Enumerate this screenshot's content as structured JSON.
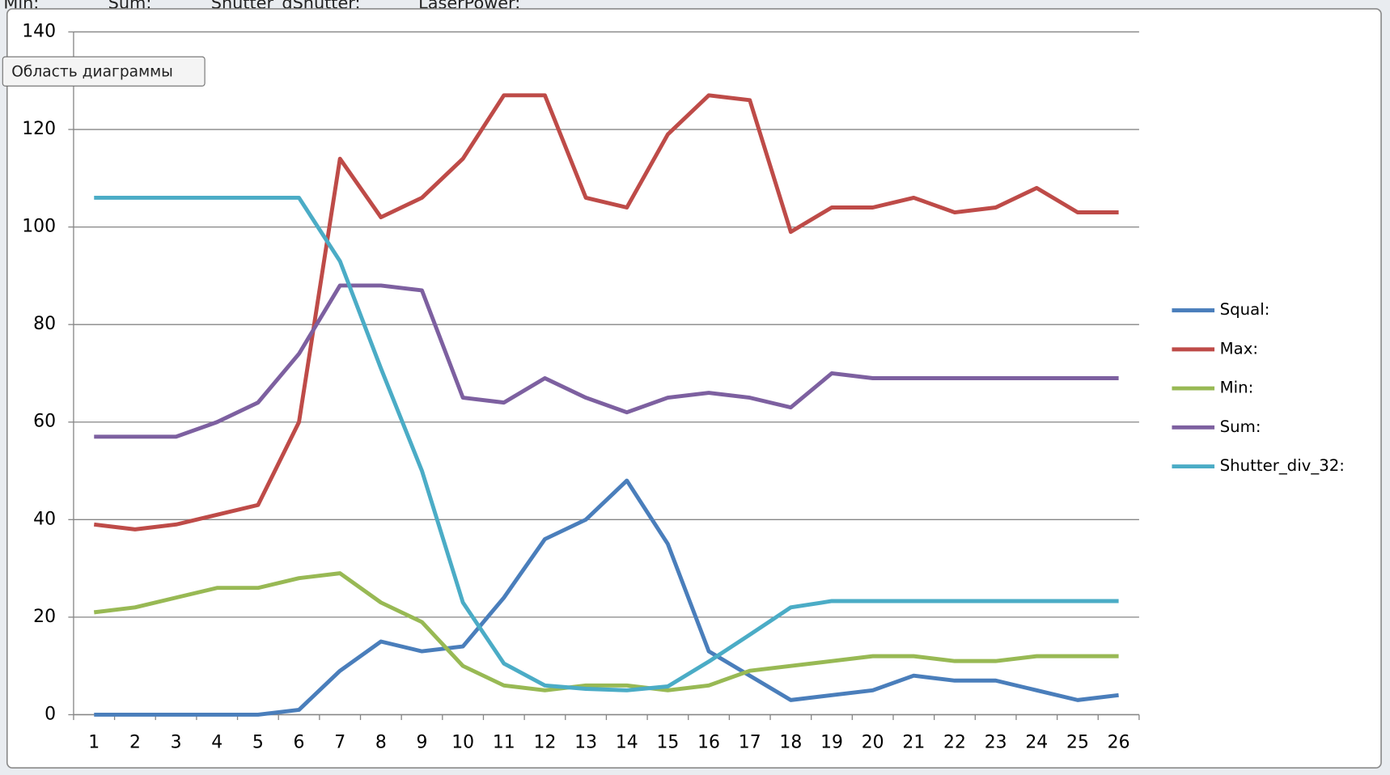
{
  "spreadsheet_header": [
    "Min:",
    "Sum:",
    "Shutter_d",
    "Shutter:",
    "LaserPower:"
  ],
  "tooltip": "Область диаграммы",
  "chart_data": {
    "type": "line",
    "categories": [
      "1",
      "2",
      "3",
      "4",
      "5",
      "6",
      "7",
      "8",
      "9",
      "10",
      "11",
      "12",
      "13",
      "14",
      "15",
      "16",
      "17",
      "18",
      "19",
      "20",
      "21",
      "22",
      "23",
      "24",
      "25",
      "26"
    ],
    "series": [
      {
        "name": "Squal:",
        "color": "#4a7ebb",
        "values": [
          0,
          0,
          0,
          0,
          0,
          1,
          9,
          15,
          13,
          14,
          24,
          36,
          40,
          48,
          35,
          13,
          8,
          3,
          4,
          5,
          8,
          7,
          7,
          5,
          3,
          4
        ]
      },
      {
        "name": "Max:",
        "color": "#be4b48",
        "values": [
          39,
          38,
          39,
          41,
          43,
          60,
          114,
          102,
          106,
          114,
          127,
          127,
          106,
          104,
          119,
          127,
          126,
          99,
          104,
          104,
          106,
          103,
          104,
          108,
          103,
          103
        ]
      },
      {
        "name": "Min:",
        "color": "#98b954",
        "values": [
          21,
          22,
          24,
          26,
          26,
          28,
          29,
          23,
          19,
          10,
          6,
          5,
          6,
          6,
          5,
          6,
          9,
          10,
          11,
          12,
          12,
          11,
          11,
          12,
          12,
          12
        ]
      },
      {
        "name": "Sum:",
        "color": "#7d60a0",
        "values": [
          57,
          57,
          57,
          60,
          64,
          74,
          88,
          88,
          87,
          65,
          64,
          69,
          65,
          62,
          65,
          66,
          65,
          63,
          70,
          69,
          69,
          69,
          69,
          69,
          69,
          69
        ]
      },
      {
        "name": "Shutter_div_32:",
        "color": "#4bacc6",
        "values": [
          106,
          106,
          106,
          106,
          106,
          106,
          93,
          71,
          50,
          23,
          10.5,
          6,
          5.3,
          5,
          5.8,
          10.9,
          16.4,
          22,
          23.3,
          23.3,
          23.3,
          23.3,
          23.3,
          23.3,
          23.3,
          23.3
        ]
      }
    ],
    "ylim": [
      0,
      140
    ],
    "yticks": [
      0,
      20,
      40,
      60,
      80,
      100,
      120,
      140
    ],
    "grid": true,
    "legend": "right"
  }
}
